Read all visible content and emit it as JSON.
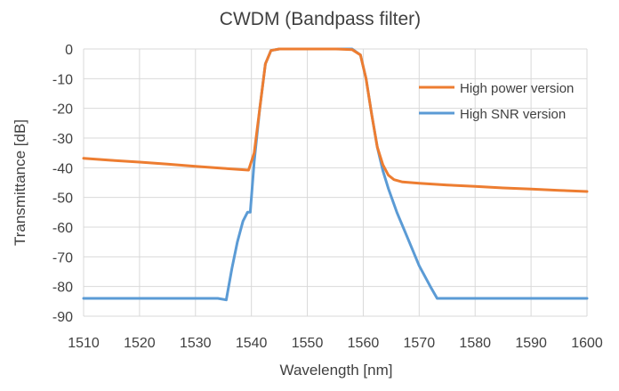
{
  "chart_data": {
    "type": "line",
    "title": "CWDM (Bandpass filter)",
    "xlabel": "Wavelength [nm]",
    "ylabel": "Transmittance [dB]",
    "xlim": [
      1510,
      1600
    ],
    "ylim": [
      -90,
      0
    ],
    "xticks": [
      1510,
      1520,
      1530,
      1540,
      1550,
      1560,
      1570,
      1580,
      1590,
      1600
    ],
    "yticks": [
      0,
      -10,
      -20,
      -30,
      -40,
      -50,
      -60,
      -70,
      -80,
      -90
    ],
    "grid": true,
    "legend_position": "right",
    "series": [
      {
        "name": "High power version",
        "color": "#ed7d31",
        "x": [
          1510,
          1515,
          1520,
          1525,
          1530,
          1535,
          1539.5,
          1540.5,
          1541.5,
          1542.5,
          1543.5,
          1545,
          1550,
          1555,
          1558,
          1559.5,
          1560.5,
          1561.5,
          1562.5,
          1563.5,
          1564.5,
          1565.5,
          1567,
          1570,
          1575,
          1580,
          1585,
          1590,
          1595,
          1600
        ],
        "y": [
          -36.8,
          -37.5,
          -38.1,
          -38.8,
          -39.5,
          -40.2,
          -40.8,
          -35,
          -20,
          -5,
          -0.5,
          0,
          0,
          0,
          -0.2,
          -2,
          -10,
          -22,
          -33,
          -39,
          -42.5,
          -44,
          -44.8,
          -45.2,
          -45.8,
          -46.3,
          -46.8,
          -47.2,
          -47.6,
          -48
        ]
      },
      {
        "name": "High SNR version",
        "color": "#5b9bd5",
        "x": [
          1510,
          1513,
          1516,
          1519,
          1522,
          1525,
          1528,
          1531,
          1534,
          1535.5,
          1536.5,
          1537.5,
          1538.5,
          1539.3,
          1539.8,
          1540.5,
          1541.5,
          1542.5,
          1543.5,
          1545,
          1550,
          1555,
          1558,
          1559.5,
          1560.5,
          1561.5,
          1562.5,
          1563.5,
          1564.5,
          1566,
          1568,
          1570,
          1572,
          1573.2,
          1575,
          1578,
          1581,
          1584,
          1587,
          1590,
          1593,
          1596,
          1600
        ],
        "y": [
          -84,
          -84,
          -84,
          -84,
          -84,
          -84,
          -84,
          -84,
          -84,
          -84.5,
          -74,
          -65,
          -58,
          -55,
          -55,
          -38,
          -20,
          -5,
          -0.5,
          0,
          0,
          0,
          0,
          -2,
          -10,
          -22,
          -33,
          -41,
          -47,
          -55,
          -64,
          -73,
          -80,
          -84,
          -84,
          -84,
          -84,
          -84,
          -84,
          -84,
          -84,
          -84,
          -84
        ]
      }
    ]
  }
}
